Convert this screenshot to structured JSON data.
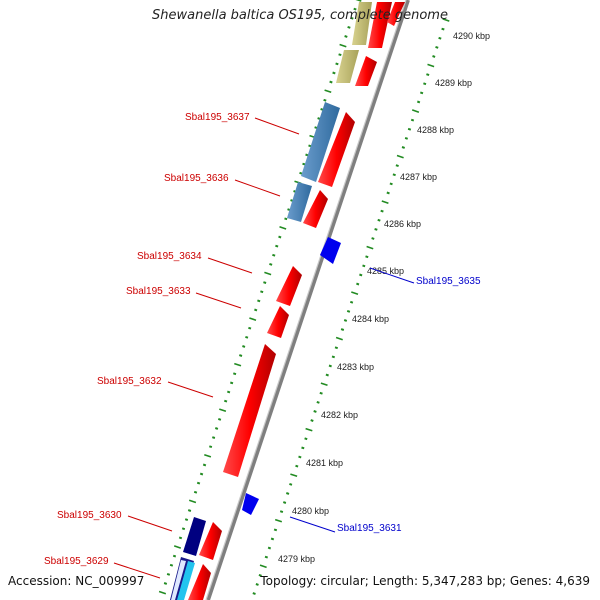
{
  "title": "Shewanella baltica OS195, complete genome",
  "accession": "Accession: NC_009997",
  "summary": "Topology: circular; Length: 5,347,283 bp; Genes: 4,639",
  "colors": {
    "forward_cds": "#ff0000",
    "reverse_cds": "#0000ff",
    "annotation_blue": "#4682b4",
    "annotation_khaki": "#bdb76b",
    "annotation_navy": "#000080",
    "annotation_cyan": "#00bfff",
    "backbone": "#808080",
    "tick": "#228b22"
  },
  "tick_labels": [
    "4279 kbp",
    "4280 kbp",
    "4281 kbp",
    "4282 kbp",
    "4283 kbp",
    "4284 kbp",
    "4285 kbp",
    "4286 kbp",
    "4287 kbp",
    "4288 kbp",
    "4289 kbp",
    "4290 kbp"
  ],
  "genes": [
    {
      "name": "Sbal195_3637",
      "color": "#cc0000"
    },
    {
      "name": "Sbal195_3636",
      "color": "#cc0000"
    },
    {
      "name": "Sbal195_3634",
      "color": "#cc0000"
    },
    {
      "name": "Sbal195_3633",
      "color": "#cc0000"
    },
    {
      "name": "Sbal195_3632",
      "color": "#cc0000"
    },
    {
      "name": "Sbal195_3630",
      "color": "#cc0000"
    },
    {
      "name": "Sbal195_3629",
      "color": "#cc0000"
    },
    {
      "name": "Sbal195_3635",
      "color": "#0000cc"
    },
    {
      "name": "Sbal195_3631",
      "color": "#0000cc"
    }
  ]
}
